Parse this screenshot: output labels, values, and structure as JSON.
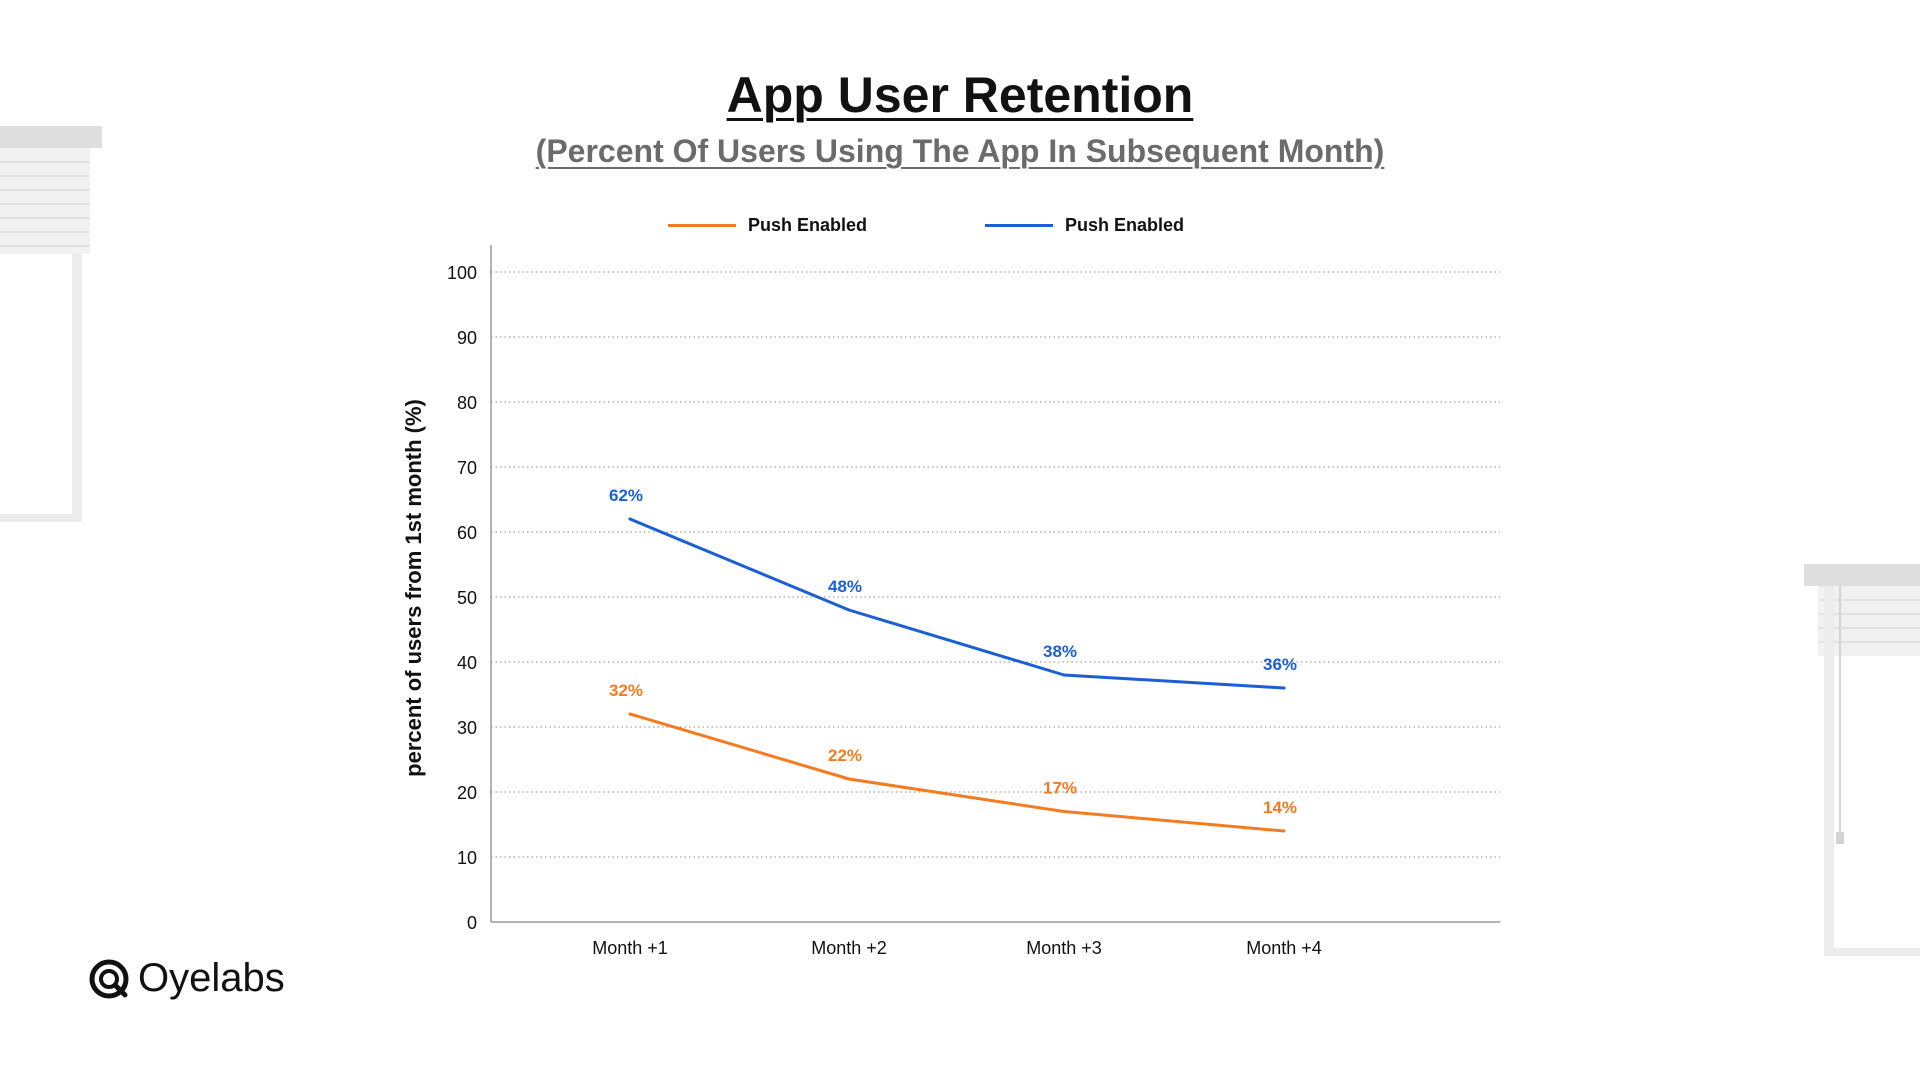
{
  "brand": {
    "name": "Oyelabs"
  },
  "chart_data": {
    "type": "line",
    "title": "App User Retention",
    "subtitle": "(Percent Of Users Using The App In Subsequent Month)",
    "ylabel": "percent of users from 1st month (%)",
    "xlabel": "",
    "categories": [
      "Month +1",
      "Month +2",
      "Month +3",
      "Month +4"
    ],
    "ylim": [
      0,
      100
    ],
    "yticks": [
      0,
      10,
      20,
      30,
      40,
      50,
      60,
      70,
      80,
      90,
      100
    ],
    "grid": "horizontal dotted",
    "legend_position": "top-center",
    "series": [
      {
        "name": "Push Enabled",
        "color": "#f47b20",
        "values": [
          32,
          22,
          17,
          14
        ],
        "labels": [
          "32%",
          "22%",
          "17%",
          "14%"
        ]
      },
      {
        "name": "Push Enabled",
        "color": "#1a5fd6",
        "values": [
          62,
          48,
          38,
          36
        ],
        "labels": [
          "62%",
          "48%",
          "38%",
          "36%"
        ]
      }
    ]
  }
}
